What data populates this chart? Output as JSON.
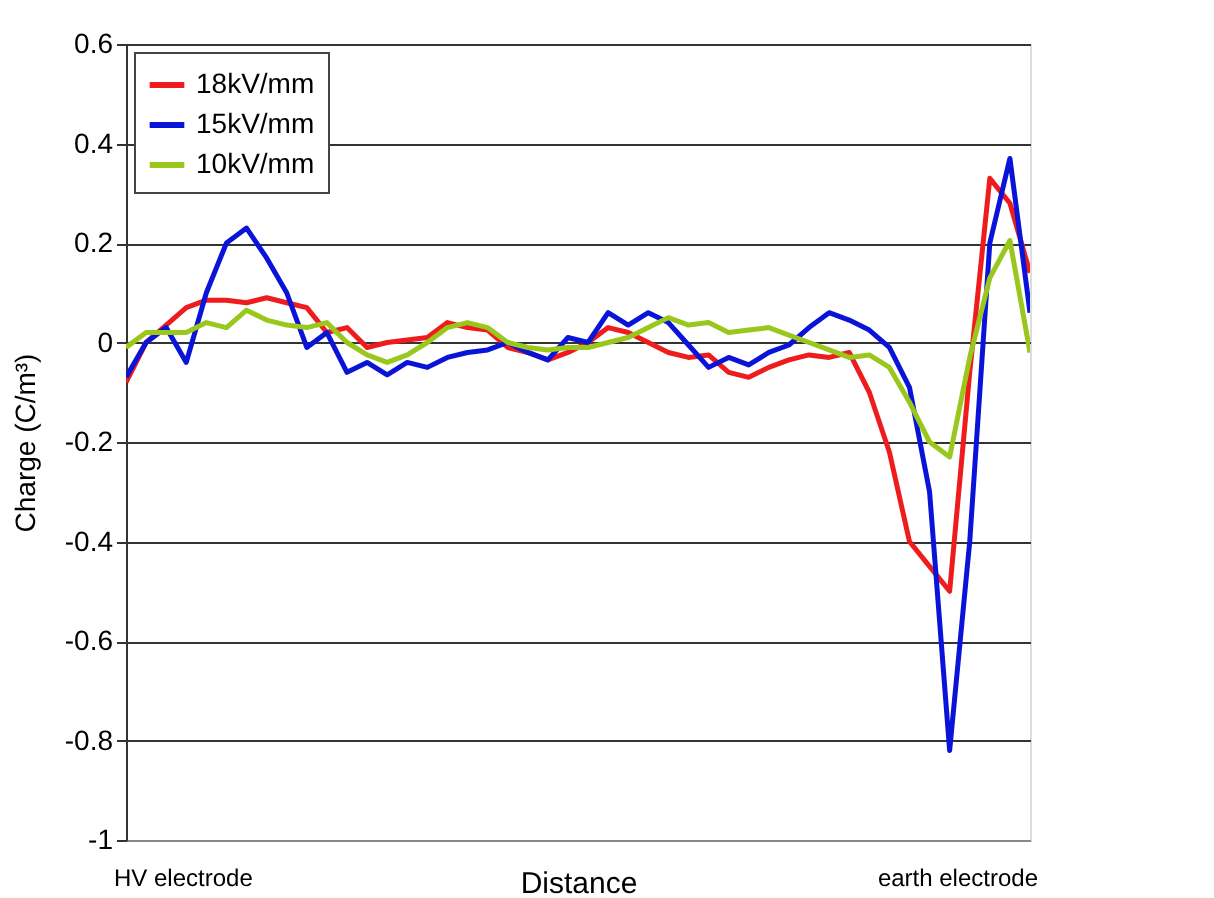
{
  "chart_data": {
    "type": "line",
    "xlabel": "Distance",
    "ylabel": "Charge (C/m³)",
    "ylim": [
      -1,
      0.6
    ],
    "yticks": [
      -1,
      -0.8,
      -0.6,
      -0.4,
      -0.2,
      0,
      0.2,
      0.4,
      0.6
    ],
    "tick_labels": "y",
    "grid": "y",
    "legend": "top left",
    "line_style": "solid",
    "marker": "none",
    "annotations": [
      "HV electrode",
      "earth electrode"
    ],
    "categories": [
      null,
      null,
      null,
      null,
      null,
      null,
      null,
      null,
      null,
      null,
      null,
      null,
      null,
      null,
      null,
      null,
      null,
      null,
      null,
      null,
      null,
      null,
      null,
      null,
      null,
      null,
      null,
      null,
      null,
      null,
      null,
      null,
      null,
      null,
      null,
      null,
      null,
      null,
      null,
      null,
      null,
      null,
      null,
      null,
      null,
      null
    ],
    "series": [
      {
        "name": "18kV/mm",
        "color": "#ee1c1c",
        "values": [
          -0.08,
          0.0,
          0.035,
          0.07,
          0.085,
          0.085,
          0.08,
          0.09,
          0.08,
          0.07,
          0.02,
          0.03,
          -0.01,
          0.0,
          0.005,
          0.01,
          0.04,
          0.03,
          0.025,
          -0.01,
          -0.02,
          -0.035,
          -0.02,
          0.0,
          0.03,
          0.02,
          0.0,
          -0.02,
          -0.03,
          -0.025,
          -0.06,
          -0.07,
          -0.05,
          -0.035,
          -0.025,
          -0.03,
          -0.02,
          -0.1,
          -0.22,
          -0.4,
          -0.45,
          -0.5,
          -0.06,
          0.33,
          0.28,
          0.14
        ]
      },
      {
        "name": "15kV/mm",
        "color": "#0a14d8",
        "values": [
          -0.07,
          0.0,
          0.03,
          -0.04,
          0.1,
          0.2,
          0.23,
          0.17,
          0.1,
          -0.01,
          0.02,
          -0.06,
          -0.04,
          -0.065,
          -0.04,
          -0.05,
          -0.03,
          -0.02,
          -0.015,
          0.0,
          -0.02,
          -0.035,
          0.01,
          0.0,
          0.06,
          0.035,
          0.06,
          0.04,
          -0.005,
          -0.05,
          -0.03,
          -0.045,
          -0.02,
          -0.005,
          0.03,
          0.06,
          0.045,
          0.025,
          -0.01,
          -0.09,
          -0.3,
          -0.82,
          -0.4,
          0.2,
          0.37,
          0.06
        ]
      },
      {
        "name": "10kV/mm",
        "color": "#9ac71c",
        "values": [
          -0.01,
          0.02,
          0.02,
          0.02,
          0.04,
          0.03,
          0.065,
          0.045,
          0.035,
          0.03,
          0.04,
          0.0,
          -0.025,
          -0.04,
          -0.025,
          0.0,
          0.03,
          0.04,
          0.03,
          0.0,
          -0.01,
          -0.015,
          -0.01,
          -0.01,
          0.0,
          0.01,
          0.03,
          0.05,
          0.035,
          0.04,
          0.02,
          0.025,
          0.03,
          0.015,
          0.0,
          -0.015,
          -0.03,
          -0.025,
          -0.05,
          -0.12,
          -0.2,
          -0.23,
          -0.03,
          0.13,
          0.205,
          -0.02
        ]
      }
    ]
  }
}
